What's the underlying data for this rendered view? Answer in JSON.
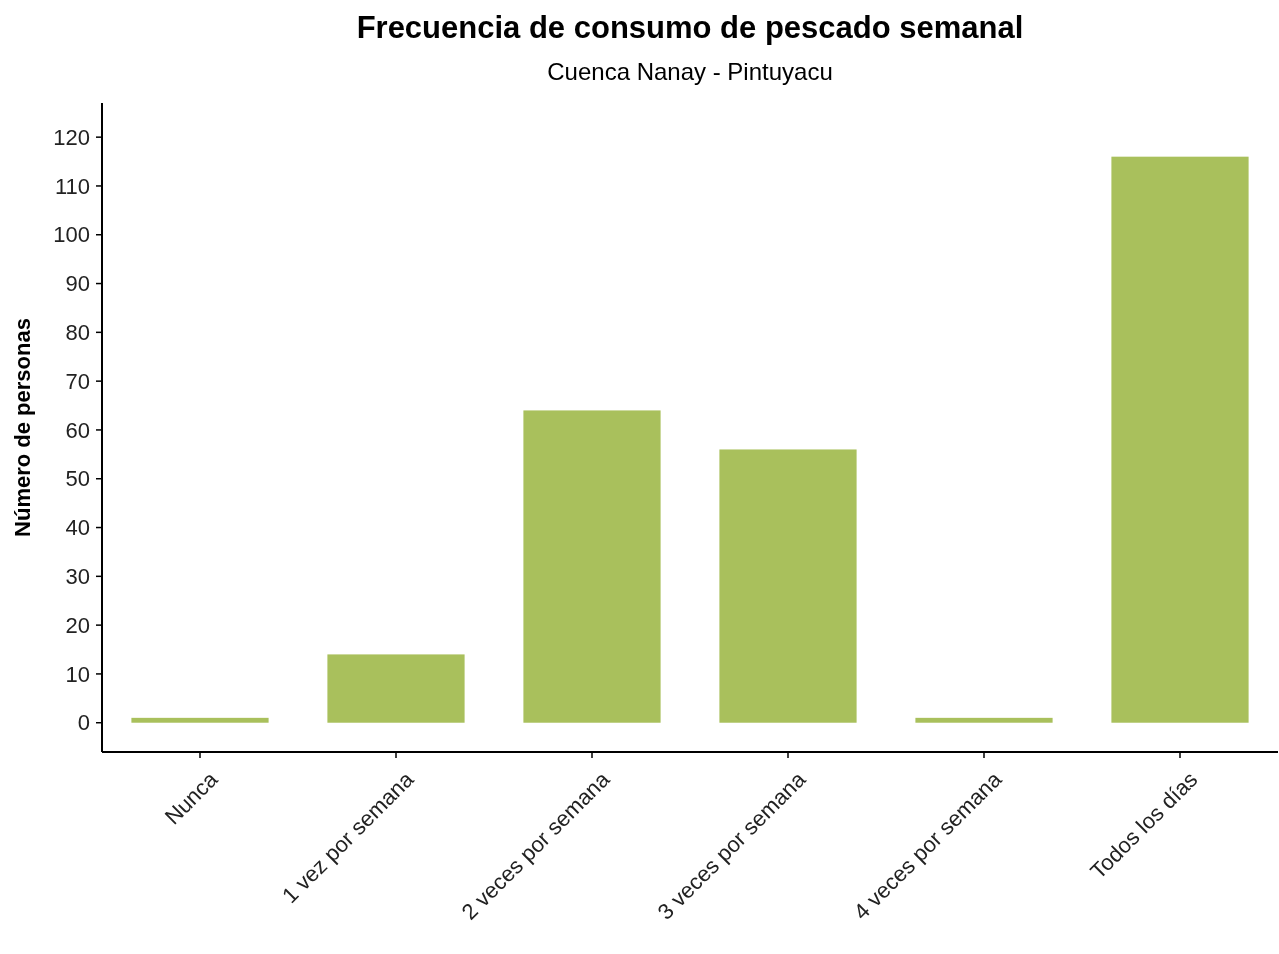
{
  "chart_data": {
    "type": "bar",
    "title": "Frecuencia de consumo de pescado semanal",
    "subtitle": "Cuenca Nanay - Pintuyacu",
    "ylabel": "Número de personas",
    "categories": [
      "Nunca",
      "1 vez por semana",
      "2 veces por semana",
      "3 veces por semana",
      "4 veces por semana",
      "Todos los días"
    ],
    "values": [
      1,
      14,
      64,
      56,
      1,
      116
    ],
    "color": "#a9c05c",
    "ylim": [
      -6,
      127
    ],
    "yticks": [
      0,
      10,
      20,
      30,
      40,
      50,
      60,
      70,
      80,
      90,
      100,
      110,
      120
    ],
    "grid": false
  }
}
